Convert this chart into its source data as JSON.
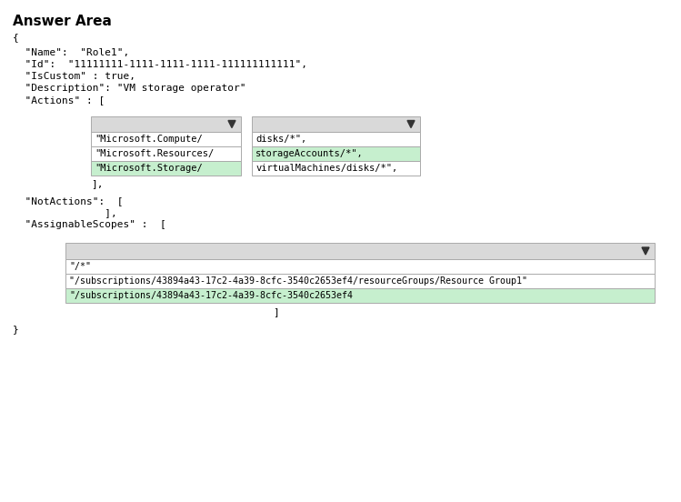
{
  "title": "Answer Area",
  "bg_color": "#ffffff",
  "text_color": "#000000",
  "mono_font": "monospace",
  "title_fontsize": 11,
  "body_fontsize": 8.0,
  "left_dropdown": {
    "items": [
      "\"Microsoft.Compute/",
      "\"Microsoft.Resources/",
      "\"Microsoft.Storage/"
    ],
    "highlight_idx": 2,
    "highlight_color": "#c6efce",
    "normal_color": "#ffffff",
    "border_color": "#aaaaaa",
    "header_color": "#d9d9d9"
  },
  "right_dropdown": {
    "items": [
      "disks/*\",",
      "storageAccounts/*\",",
      "virtualMachines/disks/*\","
    ],
    "highlight_idx": 1,
    "highlight_color": "#c6efce",
    "normal_color": "#ffffff",
    "border_color": "#aaaaaa",
    "header_color": "#d9d9d9"
  },
  "bottom_dropdown": {
    "items": [
      "\"/*\"",
      "\"/subscriptions/43894a43-17c2-4a39-8cfc-3540c2653ef4/resourceGroups/Resource Group1\"",
      "\"/subscriptions/43894a43-17c2-4a39-8cfc-3540c2653ef4"
    ],
    "highlight_idx": 2,
    "highlight_color": "#c6efce",
    "normal_color": "#ffffff",
    "border_color": "#aaaaaa",
    "header_color": "#d9d9d9"
  }
}
